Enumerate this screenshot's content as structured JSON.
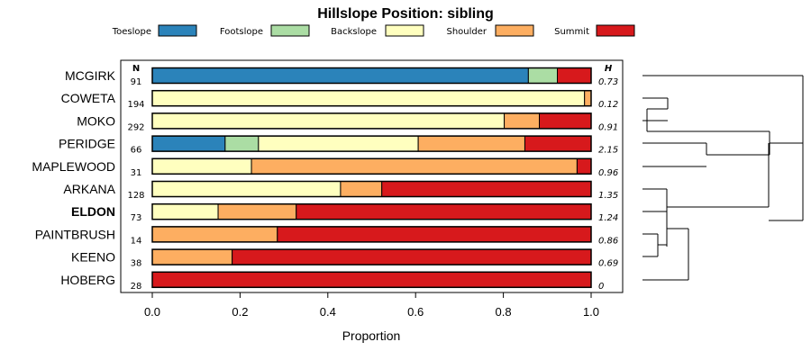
{
  "chart_data": {
    "type": "bar",
    "subtype": "stacked-horizontal-proportion",
    "title": "Hillslope Position: sibling",
    "xlabel": "Proportion",
    "ylabel": "",
    "xlim": [
      0,
      1
    ],
    "xticks": [
      "0.0",
      "0.2",
      "0.4",
      "0.6",
      "0.8",
      "1.0"
    ],
    "n_header": "N",
    "h_header": "H",
    "legend_position": "top",
    "categories": [
      "MCGIRK",
      "COWETA",
      "MOKO",
      "PERIDGE",
      "MAPLEWOOD",
      "ARKANA",
      "ELDON",
      "PAINTBRUSH",
      "KEENO",
      "HOBERG"
    ],
    "bold_category": "ELDON",
    "n": [
      "91",
      "194",
      "292",
      "66",
      "31",
      "128",
      "73",
      "14",
      "38",
      "28"
    ],
    "h": [
      "0.73",
      "0.12",
      "0.91",
      "2.15",
      "0.96",
      "1.35",
      "1.24",
      "0.86",
      "0.69",
      "0"
    ],
    "series": [
      {
        "name": "Toeslope",
        "color": "#2b83ba",
        "values": [
          0.857,
          0,
          0,
          0.166,
          0,
          0,
          0,
          0,
          0,
          0
        ]
      },
      {
        "name": "Footslope",
        "color": "#abdda4",
        "values": [
          0.066,
          0,
          0,
          0.076,
          0,
          0,
          0,
          0,
          0,
          0
        ]
      },
      {
        "name": "Backslope",
        "color": "#ffffbf",
        "values": [
          0,
          0.985,
          0.802,
          0.364,
          0.226,
          0.429,
          0.15,
          0,
          0,
          0
        ]
      },
      {
        "name": "Shoulder",
        "color": "#fdae61",
        "values": [
          0,
          0.015,
          0.08,
          0.243,
          0.742,
          0.094,
          0.178,
          0.285,
          0.182,
          0
        ]
      },
      {
        "name": "Summit",
        "color": "#d7191c",
        "values": [
          0.077,
          0,
          0.118,
          0.151,
          0.032,
          0.477,
          0.672,
          0.715,
          0.818,
          1.0
        ]
      }
    ],
    "dendrogram": "hierarchical clustering of rows, drawn to the right of the plot"
  }
}
